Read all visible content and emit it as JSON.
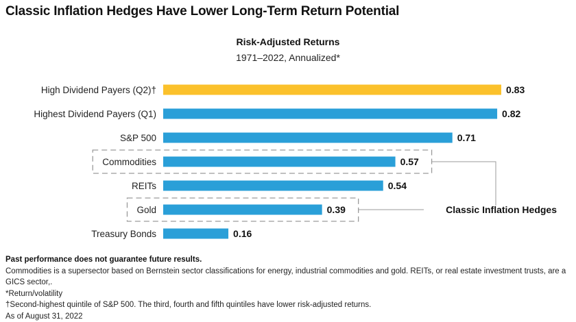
{
  "title": "Classic Inflation Hedges Have Lower Long-Term Return Potential",
  "chart_data": {
    "type": "bar",
    "orientation": "horizontal",
    "title": "Risk-Adjusted Returns",
    "subtitle": "1971–2022, Annualized*",
    "categories": [
      "High Dividend Payers (Q2)†",
      "Highest Dividend Payers (Q1)",
      "S&P 500",
      "Commodities",
      "REITs",
      "Gold",
      "Treasury Bonds"
    ],
    "values": [
      0.83,
      0.82,
      0.71,
      0.57,
      0.54,
      0.39,
      0.16
    ],
    "value_labels": [
      "0.83",
      "0.82",
      "0.71",
      "0.57",
      "0.54",
      "0.39",
      "0.16"
    ],
    "xlim": [
      0,
      0.83
    ],
    "grid": false,
    "colors": {
      "highlight": "#FBC12B",
      "default": "#2A9FD8",
      "hedge_box": "#9A9A9A",
      "connector": "#9A9A9A"
    },
    "highlight_index": 0,
    "annotation": {
      "text": "Classic Inflation Hedges",
      "boxed_categories": [
        "Commodities",
        "Gold"
      ]
    }
  },
  "notes": {
    "disclaimer": "Past performance does not guarantee future results.",
    "lines": [
      "Commodities is a supersector based on Bernstein sector classifications for energy, industrial commodities and gold. REITs, or real estate investment trusts, are a GICS sector,.",
      "*Return/volatility",
      "†Second-highest quintile of S&P 500. The third, fourth and fifth quintiles have lower risk-adjusted returns.",
      "As of August 31, 2022"
    ]
  }
}
